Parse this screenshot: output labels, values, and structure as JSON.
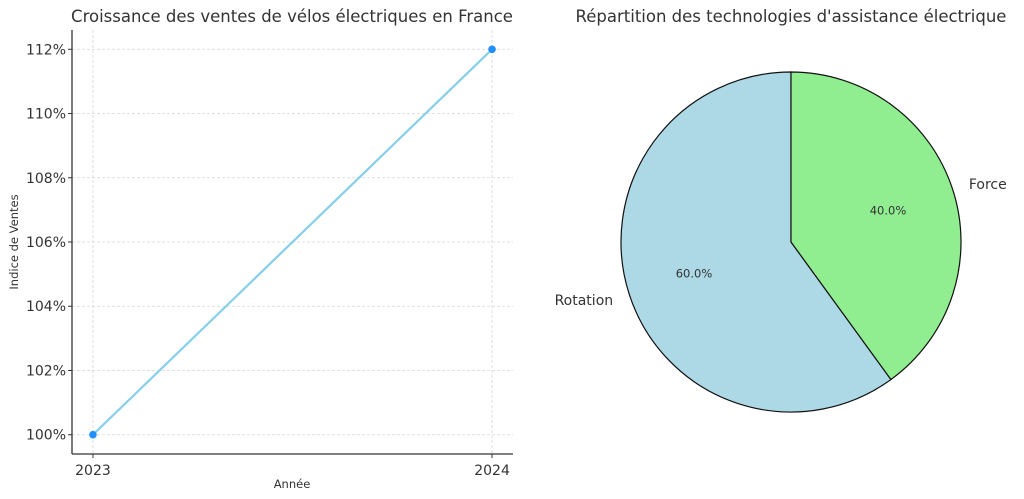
{
  "chart_data": [
    {
      "type": "line",
      "title": "Croissance des ventes de vélos électriques en France",
      "xlabel": "Année",
      "ylabel": "Indice de Ventes",
      "x": [
        "2023",
        "2024"
      ],
      "series": [
        {
          "values": [
            100,
            112
          ],
          "line_color": "#87CEEB",
          "marker_color": "#1E90FF"
        }
      ],
      "yticks": [
        "100%",
        "102%",
        "104%",
        "106%",
        "108%",
        "110%",
        "112%"
      ],
      "xticks": [
        "2023",
        "2024"
      ],
      "ylim": [
        99.4,
        112.6
      ],
      "grid": true,
      "grid_style": "dashed"
    },
    {
      "type": "pie",
      "title": "Répartition des technologies d'assistance électrique",
      "labels": [
        "Rotation",
        "Force"
      ],
      "values": [
        60,
        40
      ],
      "autopct": [
        "60.0%",
        "40.0%"
      ],
      "colors": [
        "#ADD8E6",
        "#90EE90"
      ],
      "start_angle": 90,
      "direction": "counterclockwise"
    }
  ]
}
